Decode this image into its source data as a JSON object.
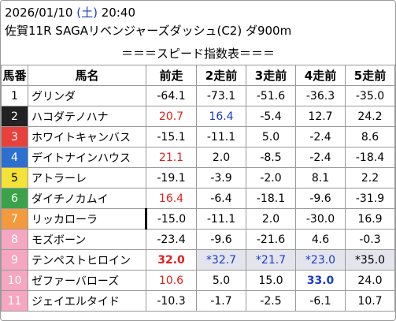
{
  "header": {
    "date": "2026/01/10",
    "weekday_open": "(",
    "weekday": "土",
    "weekday_close": ")",
    "time": "20:40",
    "race": "佐賀11R SAGAリベンジャーズダッシュ(C2) ダ900m"
  },
  "banner": "＝＝＝スピード指数表＝＝＝",
  "columns": [
    "馬番",
    "馬名",
    "前走",
    "2走前",
    "3走前",
    "4走前",
    "5走前"
  ],
  "colors": {
    "1": "#ffffff",
    "2": "#222222",
    "3": "#e8413c",
    "4": "#2d6fce",
    "5": "#f3e23a",
    "6": "#3aa34a",
    "7": "#f39a3c",
    "8": "#f5a6c0",
    "red_value": "#e0201d",
    "blue_value": "#1a3cc8",
    "highlight_bg": "#e4e4ec"
  },
  "rows": [
    {
      "num": "1",
      "name": "グリンダ",
      "v": [
        "-64.1",
        "-73.1",
        "-51.6",
        "-36.3",
        "-35.0"
      ]
    },
    {
      "num": "2",
      "name": "ハコダテノハナ",
      "v": [
        "20.7",
        "16.4",
        "-5.4",
        "12.7",
        "24.2"
      ]
    },
    {
      "num": "3",
      "name": "ホワイトキャンバス",
      "v": [
        "-15.1",
        "-11.1",
        "5.0",
        "-2.4",
        "8.6"
      ]
    },
    {
      "num": "4",
      "name": "デイトナインハウス",
      "v": [
        "21.1",
        "2.0",
        "-8.5",
        "-2.4",
        "-18.4"
      ]
    },
    {
      "num": "5",
      "name": "アトラーレ",
      "v": [
        "-19.1",
        "-3.9",
        "-2.0",
        "8.1",
        "2.2"
      ]
    },
    {
      "num": "6",
      "name": "ダイチノカムイ",
      "v": [
        "16.4",
        "-6.4",
        "-18.1",
        "-9.6",
        "-31.9"
      ]
    },
    {
      "num": "7",
      "name": "リッカローラ",
      "v": [
        "-15.0",
        "-11.1",
        "2.0",
        "-30.0",
        "16.9"
      ]
    },
    {
      "num": "8",
      "name": "モズボーン",
      "v": [
        "-23.4",
        "-9.6",
        "-21.6",
        "4.6",
        "-0.3"
      ]
    },
    {
      "num": "9",
      "name": "テンペストヒロイン",
      "v": [
        "32.0",
        "*32.7",
        "*21.7",
        "*23.0",
        "*35.0"
      ]
    },
    {
      "num": "10",
      "name": "ゼファーバローズ",
      "v": [
        "10.6",
        "5.0",
        "15.0",
        "33.0",
        "24.0"
      ]
    },
    {
      "num": "11",
      "name": "ジェイエルタイド",
      "v": [
        "-10.3",
        "-1.7",
        "-2.5",
        "-6.1",
        "10.7"
      ]
    }
  ]
}
